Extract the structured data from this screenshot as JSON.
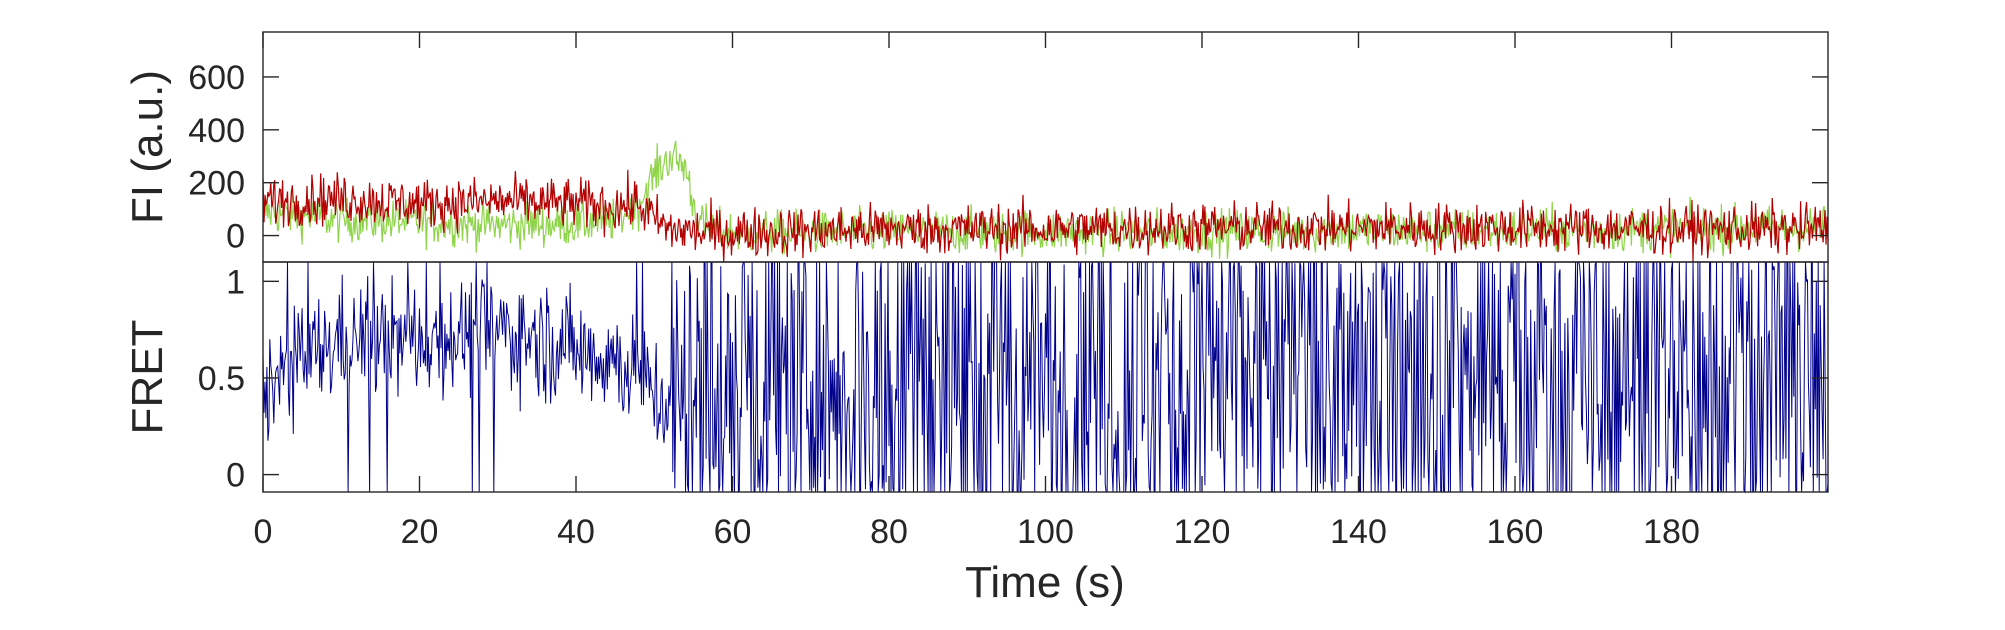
{
  "chart_data": [
    {
      "type": "line",
      "panel": "top",
      "ylabel": "FI (a.u.)",
      "xlabel": "",
      "xlim": [
        0,
        200
      ],
      "ylim": [
        -100,
        770
      ],
      "yticks": [
        0,
        200,
        400,
        600
      ],
      "x_tick_labels_shown": false,
      "grid": false,
      "colors": {
        "donor": "#8fd44a",
        "acceptor": "#b30000"
      },
      "series": [
        {
          "x": [
            0,
            10,
            20,
            30,
            40,
            45,
            48,
            50,
            52,
            54,
            55,
            56,
            58,
            60,
            80,
            100,
            120,
            140,
            160,
            180,
            200
          ],
          "values": [
            90,
            60,
            50,
            40,
            45,
            60,
            120,
            230,
            300,
            260,
            120,
            40,
            20,
            10,
            15,
            15,
            15,
            20,
            20,
            25,
            30
          ]
        },
        {
          "x": [
            0,
            10,
            20,
            30,
            40,
            45,
            48,
            50,
            52,
            54,
            55,
            56,
            58,
            60,
            80,
            100,
            120,
            140,
            160,
            180,
            200
          ],
          "values": [
            130,
            140,
            120,
            130,
            120,
            110,
            120,
            60,
            20,
            20,
            15,
            10,
            10,
            10,
            25,
            25,
            30,
            30,
            30,
            25,
            25
          ]
        }
      ]
    },
    {
      "type": "line",
      "panel": "bottom",
      "ylabel": "FRET",
      "xlabel": "Time (s)",
      "xlim": [
        0,
        200
      ],
      "ylim": [
        -0.09,
        1.1
      ],
      "yticks": [
        0,
        0.5,
        1
      ],
      "xticks": [
        0,
        20,
        40,
        60,
        80,
        100,
        120,
        140,
        160,
        180
      ],
      "grid": false,
      "colors": {
        "fret": "#00008b"
      },
      "series": [
        {
          "x": [
            0,
            10,
            20,
            30,
            40,
            45,
            50,
            52,
            55,
            60,
            80,
            100,
            120,
            140,
            160,
            180,
            200
          ],
          "values": [
            0.45,
            0.7,
            0.7,
            0.75,
            0.65,
            0.6,
            0.45,
            0.3,
            0.3,
            0.5,
            0.55,
            0.5,
            0.55,
            0.55,
            0.5,
            0.5,
            0.5
          ]
        }
      ]
    }
  ]
}
